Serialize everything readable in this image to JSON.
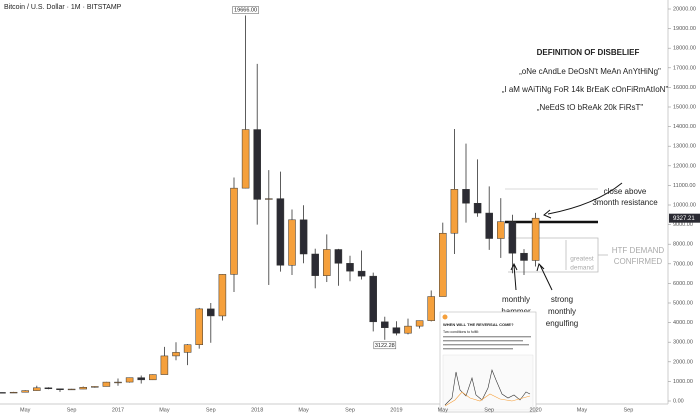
{
  "chart_data": {
    "type": "candlestick",
    "title": "Bitcoin / U.S. Dollar · 1M · BITSTAMP",
    "categories": [
      null,
      null,
      "May",
      null,
      null,
      null,
      "Sep",
      null,
      null,
      null,
      "2017",
      null,
      null,
      null,
      "May",
      null,
      null,
      null,
      "Sep",
      null,
      null,
      null,
      "2018",
      null,
      null,
      null,
      "May",
      null,
      null,
      null,
      "Sep",
      null,
      null,
      null,
      "2019",
      null,
      null,
      null,
      "May",
      null,
      null,
      null,
      "Sep",
      null,
      null,
      null,
      "2020",
      null,
      null,
      null,
      "May",
      null,
      null,
      null,
      "Sep"
    ],
    "open": [
      437,
      416,
      448,
      531,
      673,
      624,
      575,
      609,
      700,
      742,
      964,
      965,
      1190,
      1080,
      1348,
      2300,
      2480,
      2870,
      4700,
      4340,
      6460,
      10860,
      13850,
      10285,
      10325,
      6925,
      9245,
      7500,
      6395,
      7730,
      7025,
      6625,
      6370,
      4040,
      3740,
      3460,
      3820,
      4100,
      5330,
      8560,
      10800,
      10090,
      9590,
      8290,
      9150,
      7540,
      7170,
      null,
      null,
      null,
      null,
      null,
      null,
      null,
      null
    ],
    "high": [
      440,
      467,
      550,
      780,
      700,
      626,
      620,
      740,
      752,
      975,
      1150,
      1200,
      1300,
      1360,
      2760,
      3000,
      2900,
      4750,
      5000,
      6470,
      11400,
      19666,
      17200,
      11780,
      11700,
      9770,
      9990,
      7770,
      8500,
      7760,
      7410,
      7680,
      6550,
      4300,
      4070,
      4200,
      4100,
      5640,
      9100,
      13880,
      13130,
      12330,
      10950,
      10350,
      9500,
      7750,
      9600,
      null,
      null,
      null,
      null,
      null,
      null,
      null,
      null
    ],
    "low": [
      400,
      414,
      437,
      526,
      600,
      466,
      576,
      606,
      680,
      742,
      780,
      935,
      890,
      1070,
      1350,
      2080,
      1830,
      2670,
      2970,
      4110,
      5560,
      10850,
      9000,
      5920,
      6600,
      6430,
      7030,
      5750,
      6070,
      5880,
      6110,
      6200,
      3550,
      3122.28,
      3350,
      3400,
      3700,
      4060,
      5330,
      7500,
      9100,
      9400,
      7710,
      7300,
      6520,
      6430,
      6860,
      null,
      null,
      null,
      null,
      null,
      null,
      null,
      null
    ],
    "close": [
      416,
      448,
      531,
      673,
      624,
      575,
      609,
      700,
      742,
      964,
      965,
      1190,
      1080,
      1348,
      2300,
      2480,
      2870,
      4700,
      4340,
      6460,
      10860,
      13850,
      10285,
      10325,
      6925,
      9245,
      7500,
      6395,
      7730,
      7025,
      6625,
      6370,
      4040,
      3740,
      3460,
      3820,
      4100,
      5330,
      8560,
      10800,
      10090,
      9590,
      8290,
      9150,
      7540,
      7170,
      9327.21,
      null,
      null,
      null,
      null,
      null,
      null,
      null,
      null
    ],
    "up_color": "#f5a03c",
    "down_color": "#2b2b33",
    "ylim": [
      0,
      20000
    ],
    "yticks": [
      {
        "value": 0,
        "label": "0.00"
      },
      {
        "value": 1000,
        "label": "1000.00"
      },
      {
        "value": 2000,
        "label": "2000.00"
      },
      {
        "value": 3000,
        "label": "3000.00"
      },
      {
        "value": 4000,
        "label": "4000.00"
      },
      {
        "value": 5000,
        "label": "5000.00"
      },
      {
        "value": 6000,
        "label": "6000.00"
      },
      {
        "value": 7000,
        "label": "7000.00"
      },
      {
        "value": 8000,
        "label": "8000.00"
      },
      {
        "value": 9000,
        "label": "9000.00"
      },
      {
        "value": 10000,
        "label": "10000.00"
      },
      {
        "value": 11000,
        "label": "11000.00"
      },
      {
        "value": 12000,
        "label": "12000.00"
      },
      {
        "value": 13000,
        "label": "13000.00"
      },
      {
        "value": 14000,
        "label": "14000.00"
      },
      {
        "value": 15000,
        "label": "15000.00"
      },
      {
        "value": 16000,
        "label": "16000.00"
      },
      {
        "value": 17000,
        "label": "17000.00"
      },
      {
        "value": 18000,
        "label": "18000.00"
      },
      {
        "value": 19000,
        "label": "19000.00"
      },
      {
        "value": 20000,
        "label": "20000.00"
      }
    ],
    "grid": false,
    "high_label": {
      "value": 19666,
      "label": "19666.00"
    },
    "low_label": {
      "value": 3122.28,
      "label": "3122.28"
    },
    "last_price": {
      "value": 9327.21,
      "label": "9327.21"
    },
    "annotations": {
      "heading": "DEFINITION OF DISBELIEF",
      "quotes": [
        "„oNe cAndLe DeOsN't MeAn AnYtHiNg\"",
        "„I aM wAiTiNg FoR 14k BrEaK cOnFiRmAtIoN\"",
        "„NeEdS tO bReAk 20k FiRsT\""
      ],
      "resistance_note": [
        "close above",
        "3month resistance"
      ],
      "htf_note": [
        "HTF DEMAND",
        "CONFIRMED"
      ],
      "demand_note": [
        "greatest",
        "demand"
      ],
      "hammer_note": [
        "monthly",
        "hammer"
      ],
      "engulfing_note": [
        "strong",
        "monthly",
        "engulfing"
      ]
    },
    "inset": {
      "title": "WHEN WILL THE REVERSAL COME?",
      "intro": "Two conditions to fulfill:"
    }
  }
}
